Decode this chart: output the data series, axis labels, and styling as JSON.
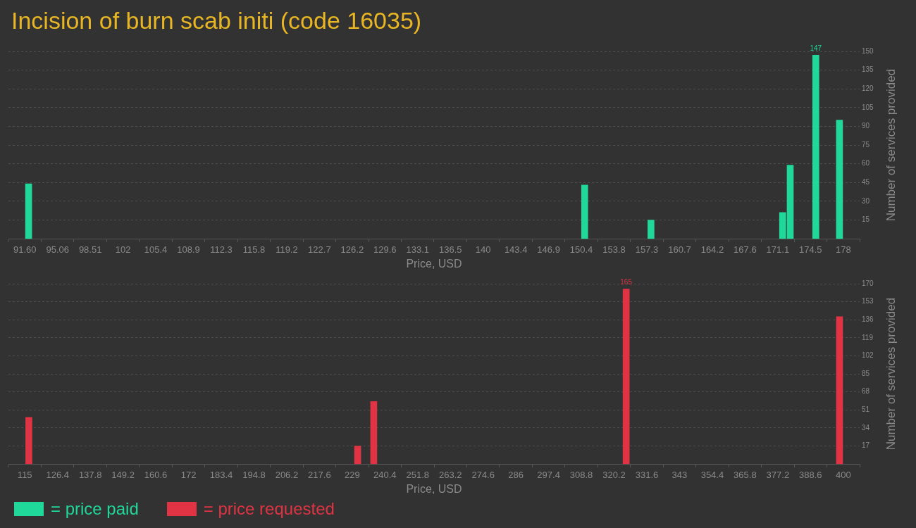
{
  "chart_data": [
    {
      "type": "bar",
      "title": "Incision of burn scab initi (code 16035)",
      "xlabel": "Price, USD",
      "ylabel": "Number of services provided",
      "x": [
        92.0,
        150.7,
        157.7,
        171.6,
        172.4,
        175.1,
        177.6
      ],
      "series": [
        {
          "name": "= price paid",
          "color": "#20d89a",
          "values": [
            44,
            43,
            15,
            21,
            59,
            147,
            95
          ],
          "value_labels": [
            null,
            null,
            null,
            null,
            null,
            "147",
            null
          ]
        }
      ],
      "xlim": [
        91.6,
        178
      ],
      "xticks": [
        {
          "value": 91.6,
          "label": "91.60"
        },
        {
          "value": 95.056,
          "label": "95.06"
        },
        {
          "value": 98.512,
          "label": "98.51"
        },
        {
          "value": 101.968,
          "label": "102"
        },
        {
          "value": 105.424,
          "label": "105.4"
        },
        {
          "value": 108.88,
          "label": "108.9"
        },
        {
          "value": 112.336,
          "label": "112.3"
        },
        {
          "value": 115.792,
          "label": "115.8"
        },
        {
          "value": 119.248,
          "label": "119.2"
        },
        {
          "value": 122.704,
          "label": "122.7"
        },
        {
          "value": 126.16,
          "label": "126.2"
        },
        {
          "value": 129.616,
          "label": "129.6"
        },
        {
          "value": 133.072,
          "label": "133.1"
        },
        {
          "value": 136.528,
          "label": "136.5"
        },
        {
          "value": 139.984,
          "label": "140"
        },
        {
          "value": 143.44,
          "label": "143.4"
        },
        {
          "value": 146.896,
          "label": "146.9"
        },
        {
          "value": 150.352,
          "label": "150.4"
        },
        {
          "value": 153.808,
          "label": "153.8"
        },
        {
          "value": 157.264,
          "label": "157.3"
        },
        {
          "value": 160.72,
          "label": "160.7"
        },
        {
          "value": 164.176,
          "label": "164.2"
        },
        {
          "value": 167.632,
          "label": "167.6"
        },
        {
          "value": 171.088,
          "label": "171.1"
        },
        {
          "value": 174.544,
          "label": "174.5"
        },
        {
          "value": 178,
          "label": "178"
        }
      ],
      "ylim": [
        0,
        150
      ],
      "yticks": [
        15,
        30,
        45,
        60,
        75,
        90,
        105,
        120,
        135,
        150
      ],
      "grid": "y",
      "legend": "bottom left"
    },
    {
      "type": "bar",
      "xlabel": "Price, USD",
      "ylabel": "Number of services provided",
      "x": [
        116.4,
        230.9,
        236.5,
        324.4,
        398.7
      ],
      "series": [
        {
          "name": "= price requested",
          "color": "#e03444",
          "values": [
            44,
            17,
            59,
            165,
            139
          ],
          "value_labels": [
            null,
            null,
            null,
            "165",
            null
          ]
        }
      ],
      "xlim": [
        115,
        400
      ],
      "xticks": [
        115,
        126.4,
        137.8,
        149.2,
        160.6,
        172,
        183.4,
        194.8,
        206.2,
        217.6,
        229,
        240.4,
        251.8,
        263.2,
        274.6,
        286,
        297.4,
        308.8,
        320.2,
        331.6,
        343,
        354.4,
        365.8,
        377.2,
        388.6,
        400
      ],
      "ylim": [
        0,
        170
      ],
      "yticks": [
        17,
        34,
        51,
        68,
        85,
        102,
        119,
        136,
        153,
        170
      ],
      "grid": "y",
      "legend": "bottom left"
    }
  ]
}
